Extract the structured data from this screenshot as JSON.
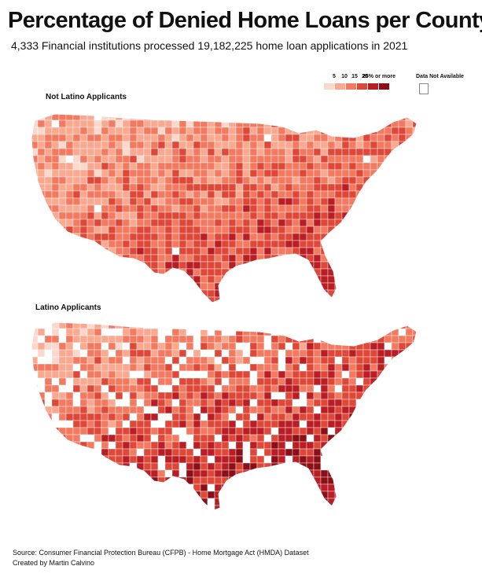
{
  "header": {
    "title": "Percentage of Denied Home Loans per County",
    "subtitle": "4,333 Financial institutions processed 19,182,225 home loan applications in 2021"
  },
  "legend": {
    "ticks": [
      "5",
      "10",
      "15",
      "20",
      "25% or more"
    ],
    "colors": [
      "#fcd7cb",
      "#f9a98f",
      "#f27a61",
      "#dd4838",
      "#b91e24",
      "#8a0f17"
    ],
    "no_data_label": "Data Not Available",
    "no_data_color": "#ffffff"
  },
  "maps": [
    {
      "label": "Not Latino Applicants",
      "no_data_share": 0.01
    },
    {
      "label": "Latino Applicants",
      "no_data_share": 0.18
    }
  ],
  "footer": {
    "source": "Source: Consumer Financial Protection Bureau (CFPB) - Home Mortgage Act (HMDA) Dataset",
    "credit": "Created by Martin Calvino"
  }
}
